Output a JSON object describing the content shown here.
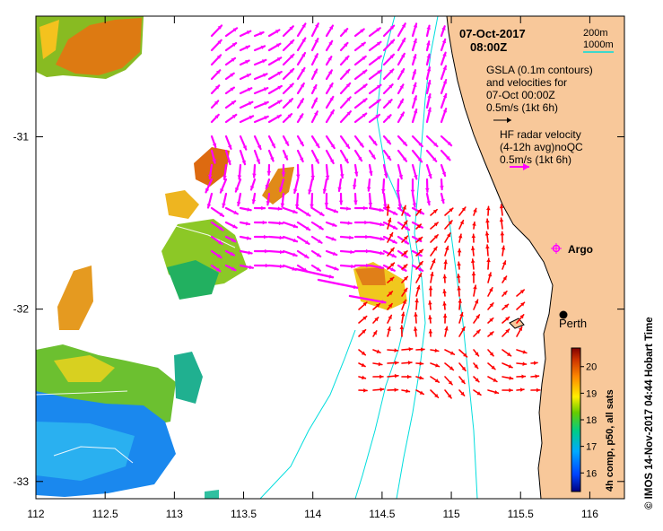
{
  "title": {
    "date": "07-Oct-2017",
    "time": "08:00Z"
  },
  "depth_legend": {
    "line1": "200m",
    "line2": "1000m"
  },
  "info": {
    "gsla_line1": "GSLA (0.1m contours)",
    "gsla_line2": "and velocities for",
    "gsla_line3": "07-Oct 00:00Z",
    "gsla_scale": "0.5m/s (1kt 6h)",
    "hf_line1": "HF radar velocity",
    "hf_line2": "(4-12h avg)noQC",
    "hf_scale": "0.5m/s (1kt 6h)"
  },
  "places": {
    "argo": "Argo",
    "perth": "Perth"
  },
  "colorbar": {
    "title": "4h comp, p50, all sats",
    "ticks": [
      "16",
      "17",
      "18",
      "19",
      "20"
    ],
    "min": 15.3,
    "max": 20.7
  },
  "credit": "© IMOS 14-Nov-2017 04:44 Hobart Time",
  "axes": {
    "x_ticks": [
      "112",
      "112.5",
      "113",
      "113.5",
      "114",
      "114.5",
      "115",
      "115.5",
      "116"
    ],
    "y_ticks": [
      "-31",
      "-32",
      "-33"
    ],
    "lon_range": [
      112,
      116.25
    ],
    "lat_range": [
      -30.3,
      -33.1
    ]
  },
  "colors": {
    "land": "#f8c89a",
    "hf_vectors": "#ff00ff",
    "gsla_vectors": "#ff0000",
    "isobaths": "#00dddd"
  }
}
